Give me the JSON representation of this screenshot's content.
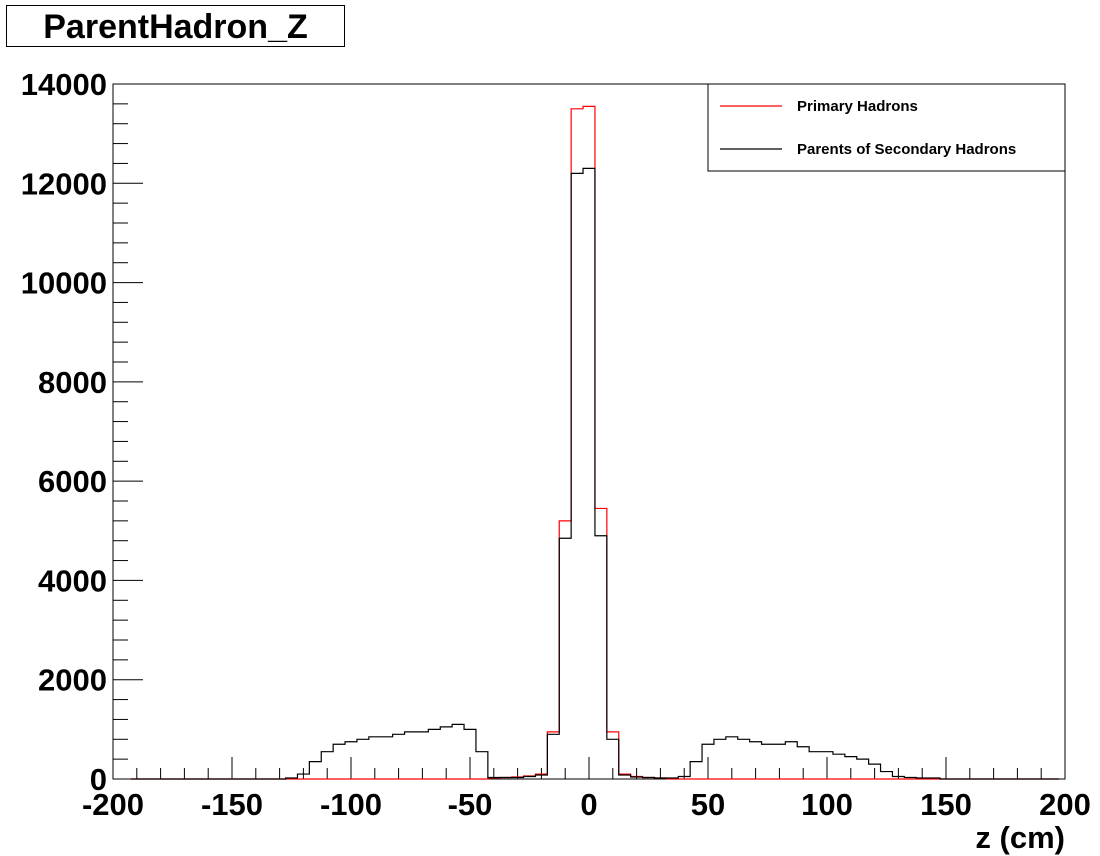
{
  "chart_data": {
    "type": "histogram",
    "title": "ParentHadron_Z",
    "xlabel": "z (cm)",
    "ylabel": "",
    "xlim": [
      -200,
      200
    ],
    "ylim": [
      0,
      14000
    ],
    "x_ticks": [
      -200,
      -150,
      -100,
      -50,
      0,
      50,
      100,
      150,
      200
    ],
    "y_ticks": [
      0,
      2000,
      4000,
      6000,
      8000,
      10000,
      12000,
      14000
    ],
    "bin_width": 5,
    "x": [
      -190,
      -185,
      -180,
      -175,
      -170,
      -165,
      -160,
      -155,
      -150,
      -145,
      -140,
      -135,
      -130,
      -125,
      -120,
      -115,
      -110,
      -105,
      -100,
      -95,
      -90,
      -85,
      -80,
      -75,
      -70,
      -65,
      -60,
      -55,
      -50,
      -45,
      -40,
      -35,
      -30,
      -25,
      -20,
      -15,
      -10,
      -5,
      0,
      5,
      10,
      15,
      20,
      25,
      30,
      35,
      40,
      45,
      50,
      55,
      60,
      65,
      70,
      75,
      80,
      85,
      90,
      95,
      100,
      105,
      110,
      115,
      120,
      125,
      130,
      135,
      140,
      145,
      150,
      155,
      160,
      165,
      170,
      175,
      180,
      185,
      190,
      195
    ],
    "series": [
      {
        "name": "Primary Hadrons",
        "color": "#ff0000",
        "values": [
          0,
          0,
          0,
          0,
          0,
          0,
          0,
          0,
          0,
          0,
          0,
          0,
          0,
          0,
          0,
          0,
          0,
          0,
          0,
          0,
          0,
          0,
          0,
          0,
          0,
          0,
          0,
          0,
          0,
          0,
          20,
          30,
          40,
          60,
          100,
          950,
          5200,
          13500,
          13550,
          5450,
          950,
          100,
          50,
          30,
          20,
          0,
          0,
          0,
          0,
          0,
          0,
          0,
          0,
          0,
          0,
          0,
          0,
          0,
          0,
          0,
          0,
          0,
          0,
          0,
          0,
          0,
          0,
          0,
          0,
          0,
          0,
          0,
          0,
          0,
          0,
          0,
          0,
          0
        ]
      },
      {
        "name": "Parents of Secondary Hadrons",
        "color": "#000000",
        "values": [
          0,
          0,
          0,
          0,
          0,
          0,
          0,
          0,
          0,
          0,
          0,
          0,
          0,
          20,
          100,
          350,
          550,
          700,
          750,
          800,
          850,
          850,
          900,
          950,
          950,
          1000,
          1050,
          1100,
          1000,
          550,
          30,
          30,
          30,
          50,
          80,
          900,
          4850,
          12200,
          12300,
          4900,
          800,
          80,
          40,
          30,
          20,
          20,
          50,
          350,
          700,
          800,
          850,
          800,
          750,
          700,
          700,
          750,
          650,
          550,
          550,
          500,
          450,
          400,
          300,
          150,
          50,
          30,
          20,
          20,
          0,
          0,
          0,
          0,
          0,
          0,
          0,
          0,
          0,
          0
        ]
      }
    ],
    "legend": {
      "position": "top-right",
      "entries": [
        "Primary Hadrons",
        "Parents of Secondary Hadrons"
      ]
    }
  }
}
